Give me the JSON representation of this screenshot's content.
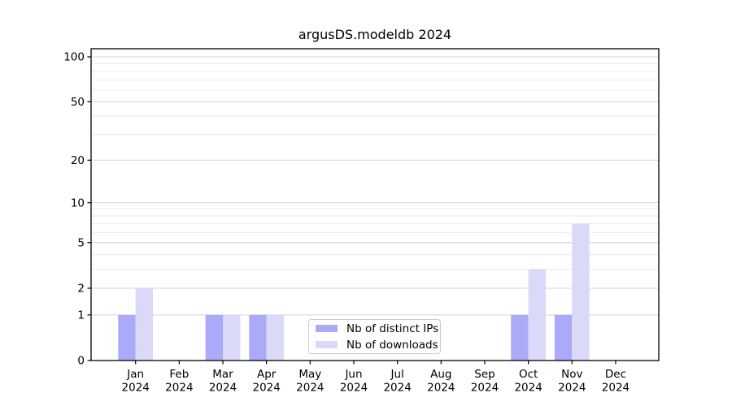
{
  "chart_data": {
    "type": "bar",
    "title": "argusDS.modeldb 2024",
    "x_months": [
      "Jan",
      "Feb",
      "Mar",
      "Apr",
      "May",
      "Jun",
      "Jul",
      "Aug",
      "Sep",
      "Oct",
      "Nov",
      "Dec"
    ],
    "x_year": "2024",
    "series": [
      {
        "name": "Nb of distinct IPs",
        "color": "#aaaaf8",
        "values": [
          1,
          0,
          1,
          1,
          0,
          0,
          0,
          0,
          0,
          1,
          1,
          0
        ]
      },
      {
        "name": "Nb of downloads",
        "color": "#dadaf8",
        "values": [
          2,
          0,
          1,
          1,
          0,
          0,
          0,
          0,
          0,
          3,
          7,
          0
        ]
      }
    ],
    "yscale": "log1p",
    "y_ticks": [
      0,
      1,
      2,
      5,
      10,
      20,
      50,
      100
    ],
    "y_minor_ticks": [
      3,
      4,
      6,
      7,
      8,
      9,
      30,
      40,
      60,
      70,
      80,
      90
    ],
    "ylim": [
      0,
      113
    ],
    "xlabel": "",
    "ylabel": "",
    "grid": true,
    "legend_position": "lower center",
    "colors": {
      "grid_major": "#d4d4d4",
      "grid_minor": "#ebebeb",
      "axis": "#000000",
      "tick_text": "#000000",
      "legend_border": "#cccccc",
      "background": "#ffffff"
    }
  }
}
